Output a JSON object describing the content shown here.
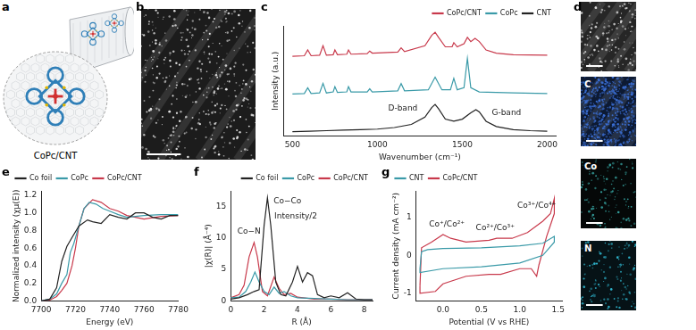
{
  "panels": [
    {
      "label": "a",
      "text": "CoPc/CNT"
    },
    {
      "label": "b"
    },
    {
      "label": "d",
      "maps": [
        "C",
        "Co",
        "N"
      ]
    }
  ],
  "chart_data": [
    {
      "panel": "c",
      "type": "line",
      "x_label": "Wavenumber (cm⁻¹)",
      "y_label": "Intensity (a.u.)",
      "xlim": [
        450,
        2050
      ],
      "xticks": [
        500,
        1000,
        1500,
        2000
      ],
      "ylim": [
        0,
        10.5
      ],
      "tick_labels": "x",
      "grid": false,
      "legend": "upper right",
      "annotations": [
        {
          "text": "D-band",
          "x": 1150,
          "y": 2.6
        },
        {
          "text": "G-band",
          "x": 1760,
          "y": 2.2
        }
      ],
      "series": [
        {
          "name": "CoPc/CNT",
          "color": "#c8394b",
          "x": [
            500,
            570,
            590,
            610,
            660,
            680,
            700,
            740,
            750,
            765,
            820,
            830,
            845,
            940,
            955,
            970,
            1120,
            1140,
            1160,
            1280,
            1320,
            1340,
            1360,
            1400,
            1440,
            1450,
            1470,
            1510,
            1530,
            1550,
            1575,
            1600,
            1640,
            1700,
            1800,
            2000
          ],
          "values": [
            7.6,
            7.65,
            8.2,
            7.65,
            7.7,
            8.6,
            7.7,
            7.75,
            8.2,
            7.75,
            7.8,
            8.2,
            7.8,
            7.85,
            8.1,
            7.9,
            8.0,
            8.4,
            8.05,
            8.6,
            9.6,
            9.9,
            9.4,
            8.5,
            8.5,
            8.9,
            8.5,
            8.8,
            9.4,
            9.0,
            9.3,
            9.0,
            8.2,
            7.9,
            7.75,
            7.7
          ]
        },
        {
          "name": "CoPc",
          "color": "#3a9aa8",
          "x": [
            500,
            570,
            590,
            610,
            660,
            680,
            700,
            740,
            750,
            765,
            820,
            830,
            845,
            940,
            955,
            970,
            1120,
            1140,
            1160,
            1300,
            1340,
            1380,
            1430,
            1450,
            1470,
            1510,
            1530,
            1550,
            1600,
            1800,
            2000
          ],
          "values": [
            4.0,
            4.05,
            4.6,
            4.05,
            4.1,
            5.0,
            4.1,
            4.2,
            4.7,
            4.15,
            4.2,
            4.7,
            4.2,
            4.2,
            4.5,
            4.2,
            4.3,
            5.0,
            4.3,
            4.4,
            5.6,
            4.4,
            4.4,
            5.5,
            4.4,
            4.6,
            7.4,
            4.6,
            4.2,
            4.1,
            4.05
          ]
        },
        {
          "name": "CNT",
          "color": "#222222",
          "x": [
            500,
            600,
            700,
            800,
            900,
            1000,
            1100,
            1200,
            1280,
            1320,
            1340,
            1360,
            1400,
            1450,
            1500,
            1550,
            1580,
            1600,
            1640,
            1700,
            1800,
            1900,
            2000
          ],
          "values": [
            0.4,
            0.45,
            0.5,
            0.55,
            0.6,
            0.65,
            0.8,
            1.1,
            1.8,
            2.7,
            3.0,
            2.6,
            1.6,
            1.4,
            1.6,
            2.2,
            2.5,
            2.3,
            1.4,
            0.9,
            0.6,
            0.5,
            0.45
          ]
        }
      ]
    },
    {
      "panel": "e",
      "type": "line",
      "x_label": "Energy (eV)",
      "y_label": "Normalized intensity (χμ(E))",
      "xlim": [
        7700,
        7780
      ],
      "xticks": [
        7700,
        7720,
        7740,
        7760,
        7780
      ],
      "ylim": [
        0,
        1.25
      ],
      "yticks": [
        {
          "value": 0,
          "label": "0.0"
        },
        0.2,
        0.4,
        0.6,
        0.8,
        {
          "value": 1,
          "label": "1.0"
        },
        1.2
      ],
      "grid": false,
      "legend": "upper left",
      "series": [
        {
          "name": "Co foil",
          "color": "#222222",
          "x": [
            7700,
            7705,
            7709,
            7712,
            7715,
            7718,
            7722,
            7727,
            7730,
            7735,
            7740,
            7745,
            7750,
            7755,
            7760,
            7765,
            7770,
            7775,
            7780
          ],
          "values": [
            0.0,
            0.02,
            0.15,
            0.45,
            0.62,
            0.72,
            0.85,
            0.92,
            0.9,
            0.88,
            0.98,
            0.95,
            0.93,
            1.0,
            1.0,
            0.95,
            0.93,
            0.97,
            0.97
          ]
        },
        {
          "name": "CoPc",
          "color": "#3a9aa8",
          "x": [
            7700,
            7705,
            7709,
            7712,
            7715,
            7717,
            7719,
            7722,
            7725,
            7728,
            7732,
            7736,
            7740,
            7745,
            7750,
            7760,
            7770,
            7780
          ],
          "values": [
            0.0,
            0.02,
            0.08,
            0.2,
            0.3,
            0.55,
            0.65,
            0.85,
            1.05,
            1.12,
            1.1,
            1.05,
            1.02,
            0.98,
            0.95,
            0.97,
            0.98,
            0.98
          ]
        },
        {
          "name": "CoPc/CNT",
          "color": "#c8394b",
          "x": [
            7700,
            7705,
            7709,
            7712,
            7715,
            7718,
            7720,
            7722,
            7725,
            7730,
            7735,
            7740,
            7745,
            7750,
            7760,
            7770,
            7780
          ],
          "values": [
            0.0,
            0.01,
            0.05,
            0.12,
            0.2,
            0.4,
            0.6,
            0.85,
            1.05,
            1.15,
            1.12,
            1.05,
            1.02,
            0.97,
            0.93,
            0.96,
            0.97
          ]
        }
      ]
    },
    {
      "panel": "f",
      "type": "line",
      "x_label": "R (Å)",
      "y_label": "|χ(R)| (Å⁻⁴)",
      "xlim": [
        0,
        8.5
      ],
      "xticks": [
        0,
        2,
        4,
        6,
        8
      ],
      "ylim": [
        0,
        17.5
      ],
      "yticks": [
        0,
        5,
        10,
        15
      ],
      "grid": false,
      "legend": "upper right",
      "annotations": [
        {
          "text": "Co−N",
          "x": 1.1,
          "y": 11
        },
        {
          "text": "Co−Co",
          "x": 3.4,
          "y": 15.8
        },
        {
          "text": "Intensity/2",
          "x": 3.9,
          "y": 13.4
        }
      ],
      "series": [
        {
          "name": "Co foil",
          "color": "#222222",
          "x": [
            0,
            0.5,
            1.0,
            1.4,
            1.7,
            2.0,
            2.2,
            2.4,
            2.7,
            3.0,
            3.3,
            3.7,
            4.0,
            4.3,
            4.6,
            4.9,
            5.2,
            5.6,
            6.0,
            6.5,
            7.0,
            7.5,
            8.0,
            8.5
          ],
          "values": [
            0.3,
            0.5,
            1.0,
            1.5,
            1.8,
            12,
            16.4,
            12,
            3,
            1,
            0.8,
            3,
            5.5,
            3,
            4.5,
            4,
            1,
            0.5,
            0.8,
            0.5,
            1.3,
            0.3,
            0.2,
            0.2
          ]
        },
        {
          "name": "CoPc",
          "color": "#3a9aa8",
          "x": [
            0,
            0.5,
            0.9,
            1.2,
            1.45,
            1.7,
            2.0,
            2.3,
            2.6,
            2.9,
            3.2,
            3.6,
            4.0,
            5.0,
            6.0,
            7.0,
            8.5
          ],
          "values": [
            0.5,
            0.6,
            1.5,
            3,
            4.6,
            3,
            1.5,
            1.0,
            2.2,
            1.2,
            1.5,
            0.8,
            0.5,
            0.4,
            0.3,
            0.2,
            0.2
          ]
        },
        {
          "name": "CoPc/CNT",
          "color": "#c8394b",
          "x": [
            0,
            0.5,
            0.8,
            1.1,
            1.4,
            1.6,
            1.9,
            2.2,
            2.6,
            2.9,
            3.2,
            3.6,
            4.0,
            5.0,
            6.0,
            7.0,
            8.5
          ],
          "values": [
            0.5,
            1.0,
            2.5,
            7,
            9.3,
            7,
            1.5,
            0.8,
            3.8,
            2,
            1,
            1.2,
            0.6,
            0.3,
            0.3,
            0.2,
            0.2
          ]
        }
      ]
    },
    {
      "panel": "g",
      "type": "line",
      "x_label": "Potential (V vs RHE)",
      "y_label": "Current density (mA cm⁻²)",
      "xlim": [
        -0.35,
        1.55
      ],
      "xticks": [
        {
          "value": 0,
          "label": "0.0"
        },
        0.5,
        {
          "value": 1,
          "label": "1.0"
        },
        1.5
      ],
      "ylim": [
        -1.2,
        1.7
      ],
      "yticks": [
        -1,
        0,
        1
      ],
      "grid": false,
      "legend": "upper left",
      "annotations": [
        {
          "text": "Co⁺/Co²⁺",
          "x": 0.05,
          "y": 0.82
        },
        {
          "text": "Co²⁺/Co³⁺",
          "x": 0.68,
          "y": 0.72
        },
        {
          "text": "Co³⁺/Co⁴⁺",
          "x": 1.22,
          "y": 1.3
        }
      ],
      "series": [
        {
          "name": "CNT",
          "color": "#3a9aa8",
          "x": [
            -0.3,
            -0.28,
            -0.2,
            0.0,
            0.5,
            1.0,
            1.3,
            1.45,
            1.45,
            1.3,
            1.0,
            0.5,
            0.0,
            -0.3,
            -0.3
          ],
          "values": [
            -0.35,
            0.1,
            0.15,
            0.18,
            0.2,
            0.25,
            0.32,
            0.5,
            0.35,
            0.0,
            -0.2,
            -0.3,
            -0.35,
            -0.45,
            -0.35
          ]
        },
        {
          "name": "CoPc/CNT",
          "color": "#c8394b",
          "x": [
            -0.3,
            -0.28,
            -0.15,
            0.0,
            0.1,
            0.3,
            0.6,
            0.7,
            0.9,
            1.1,
            1.3,
            1.4,
            1.45,
            1.45,
            1.35,
            1.25,
            1.22,
            1.15,
            1.0,
            0.75,
            0.6,
            0.3,
            0.0,
            -0.1,
            -0.3,
            -0.3
          ],
          "values": [
            -0.8,
            0.2,
            0.35,
            0.55,
            0.45,
            0.35,
            0.4,
            0.45,
            0.45,
            0.6,
            0.9,
            1.1,
            1.5,
            1.1,
            0.5,
            -0.25,
            -0.55,
            -0.35,
            -0.35,
            -0.5,
            -0.5,
            -0.55,
            -0.75,
            -0.95,
            -1.0,
            -0.8
          ]
        }
      ]
    }
  ]
}
